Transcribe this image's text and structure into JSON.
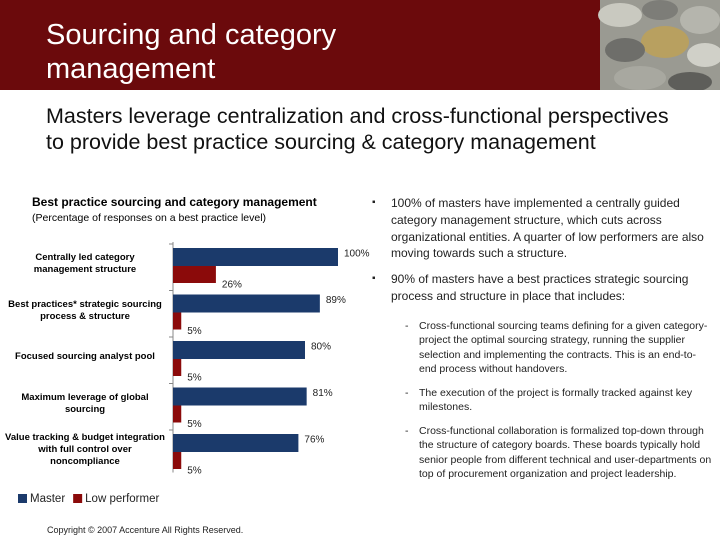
{
  "header": {
    "title": "Sourcing and category management"
  },
  "subtitle": "Masters leverage centralization and cross-functional perspectives to provide best practice sourcing & category management",
  "chart_data": {
    "type": "bar",
    "orientation": "horizontal",
    "title": "Best practice sourcing and category management",
    "subtitle": "(Percentage of responses on a best practice level)",
    "categories": [
      "Centrally led category management structure",
      "Best practices* strategic sourcing process & structure",
      "Focused sourcing analyst pool",
      "Maximum leverage of global sourcing",
      "Value tracking & budget integration with full control over noncompliance"
    ],
    "series": [
      {
        "name": "Master",
        "color": "#1b3a6b",
        "values": [
          100,
          89,
          80,
          81,
          76
        ],
        "value_labels": [
          "100%",
          "89%",
          "80%",
          "81%",
          "76%"
        ]
      },
      {
        "name": "Low performer",
        "color": "#8b0a0a",
        "values": [
          26,
          5,
          5,
          5,
          5
        ],
        "value_labels": [
          "26%",
          "5%",
          "5%",
          "5%",
          "5%"
        ]
      }
    ],
    "legend": "bottom-left"
  },
  "bullets": [
    {
      "text": "100% of masters have implemented a centrally guided category management structure, which cuts across organizational entities.  A quarter of low performers are also moving towards such a structure."
    },
    {
      "text": "90% of masters have a best practices strategic sourcing process and structure in place that includes:",
      "subitems": [
        "Cross-functional sourcing teams defining for a given category-project the optimal sourcing strategy, running the supplier selection and implementing the contracts. This is an end-to-end process without handovers.",
        "The execution of the project is formally tracked against key milestones.",
        "Cross-functional collaboration is formalized top-down through the structure of category boards. These boards typically hold senior people from different technical and user-departments on top of procurement organization and project leadership."
      ]
    }
  ],
  "footer": "Copyright © 2007 Accenture  All Rights Reserved."
}
